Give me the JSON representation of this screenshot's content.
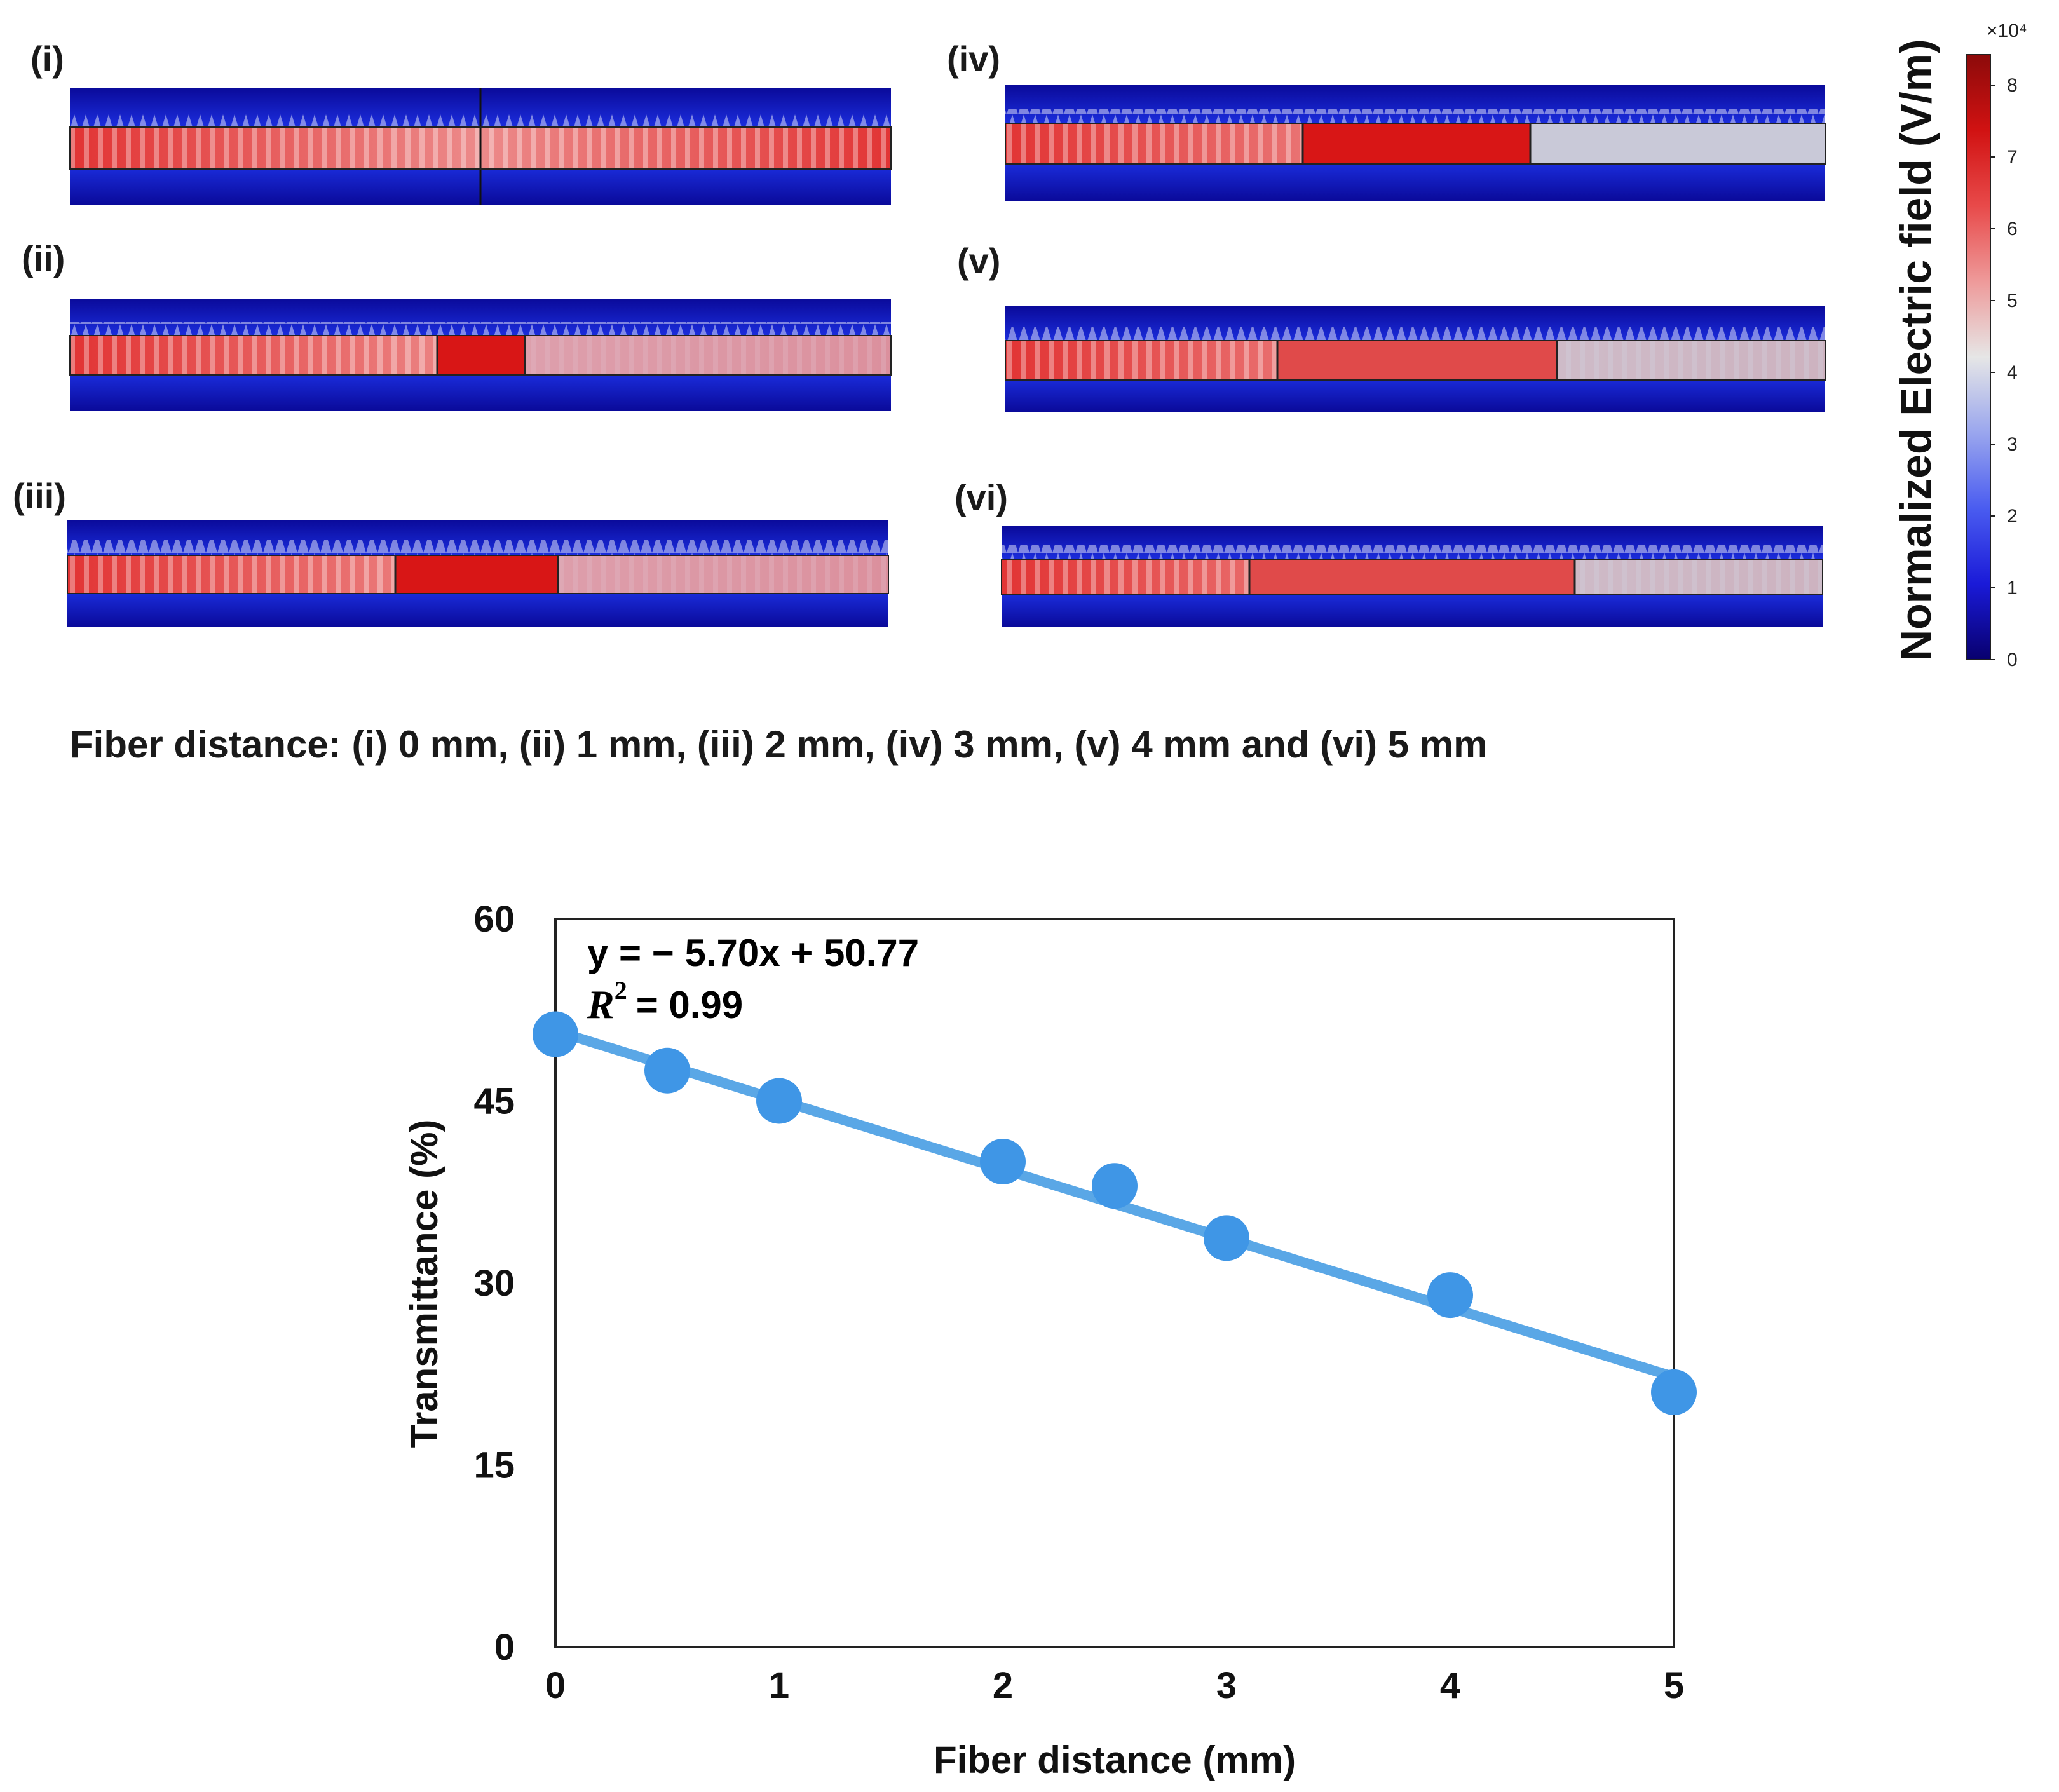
{
  "panels": [
    {
      "label": "(i)"
    },
    {
      "label": "(ii)"
    },
    {
      "label": "(iii)"
    },
    {
      "label": "(iv)"
    },
    {
      "label": "(v)"
    },
    {
      "label": "(vi)"
    }
  ],
  "caption": "Fiber distance: (i) 0 mm, (ii) 1 mm, (iii) 2 mm, (iv) 3 mm, (v) 4 mm and (vi) 5 mm",
  "colorbar": {
    "title": "Normalized Electric field (V/m)",
    "multiplier": "×10⁴",
    "ticks": [
      "0",
      "1",
      "2",
      "3",
      "4",
      "5",
      "6",
      "7",
      "8"
    ],
    "colors": [
      "#08006e",
      "#1a1ad8",
      "#4a5cf0",
      "#9aa6ee",
      "#e6e6e6",
      "#ee9a9a",
      "#e84a4a",
      "#d11212",
      "#8c0a0a"
    ]
  },
  "chart_data": {
    "type": "scatter",
    "title": "",
    "xlabel": "Fiber distance (mm)",
    "ylabel": "Transmittance (%)",
    "xlim": [
      0,
      5
    ],
    "ylim": [
      0,
      60
    ],
    "xticks": [
      "0",
      "1",
      "2",
      "3",
      "4",
      "5"
    ],
    "yticks": [
      "0",
      "15",
      "30",
      "45",
      "60"
    ],
    "x": [
      0,
      0.5,
      1,
      2,
      2.5,
      3,
      4,
      5
    ],
    "y": [
      50.5,
      47.5,
      45.0,
      40.0,
      38.0,
      33.7,
      29.0,
      21.0
    ],
    "fit": {
      "slope": -5.7,
      "intercept": 50.77
    },
    "equation": "y = − 5.70x + 50.77",
    "r2_label": "R",
    "r2_sup": "2",
    "r2_value": "= 0.99",
    "marker_color": "#3f96e6",
    "line_color": "#5aa7e6"
  }
}
